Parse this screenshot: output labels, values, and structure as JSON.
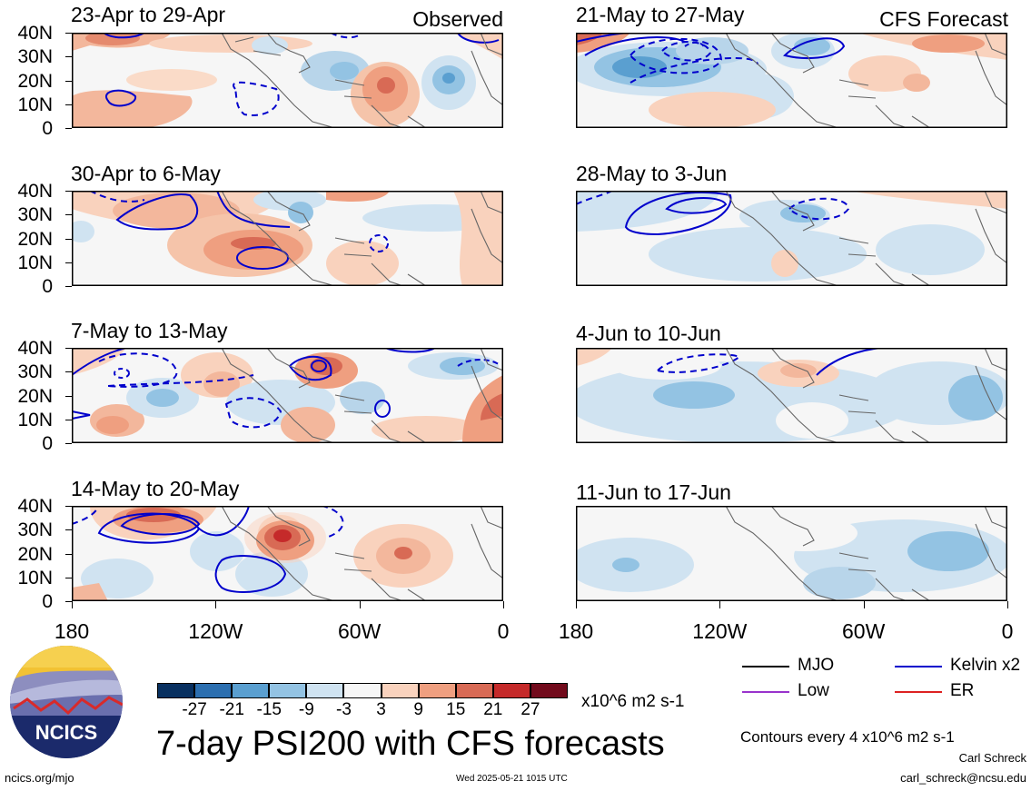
{
  "header": {
    "observed_label": "Observed",
    "forecast_label": "CFS Forecast"
  },
  "panels": {
    "observed": [
      {
        "title": "23-Apr to 29-Apr"
      },
      {
        "title": "30-Apr to 6-May"
      },
      {
        "title": "7-May to 13-May"
      },
      {
        "title": "14-May to 20-May"
      }
    ],
    "forecast": [
      {
        "title": "21-May to 27-May"
      },
      {
        "title": "28-May to 3-Jun"
      },
      {
        "title": "4-Jun to 10-Jun"
      },
      {
        "title": "11-Jun to 17-Jun"
      }
    ]
  },
  "lat_ticks": [
    "40N",
    "30N",
    "20N",
    "10N",
    "0"
  ],
  "lon_ticks": [
    "180",
    "120W",
    "60W",
    "0"
  ],
  "colorbar": {
    "labels": [
      "-27",
      "-21",
      "-15",
      "-9",
      "-3",
      "3",
      "9",
      "15",
      "21",
      "27"
    ],
    "colors": [
      "#083060",
      "#2c6fb0",
      "#5a9fd0",
      "#93c3e3",
      "#cfe3f1",
      "#f6f6f6",
      "#f9d2bd",
      "#ef9f80",
      "#d86a55",
      "#c52a2a",
      "#720b1c"
    ],
    "units": "x10^6 m2 s-1"
  },
  "legend": {
    "items": [
      {
        "label": "MJO",
        "color": "#000000"
      },
      {
        "label": "Kelvin x2",
        "color": "#0000cc"
      },
      {
        "label": "Low",
        "color": "#9933cc"
      },
      {
        "label": "ER",
        "color": "#dd2222"
      }
    ],
    "contours_note": "Contours every 4 x10^6 m2 s-1"
  },
  "footer": {
    "main_title": "7-day PSI200 with CFS forecasts",
    "logo_text": "NCICS",
    "site": "ncics.org/mjo",
    "timestamp": "Wed 2025-05-21 1015 UTC",
    "author": "Carl Schreck",
    "email": "carl_schreck@ncsu.edu"
  }
}
